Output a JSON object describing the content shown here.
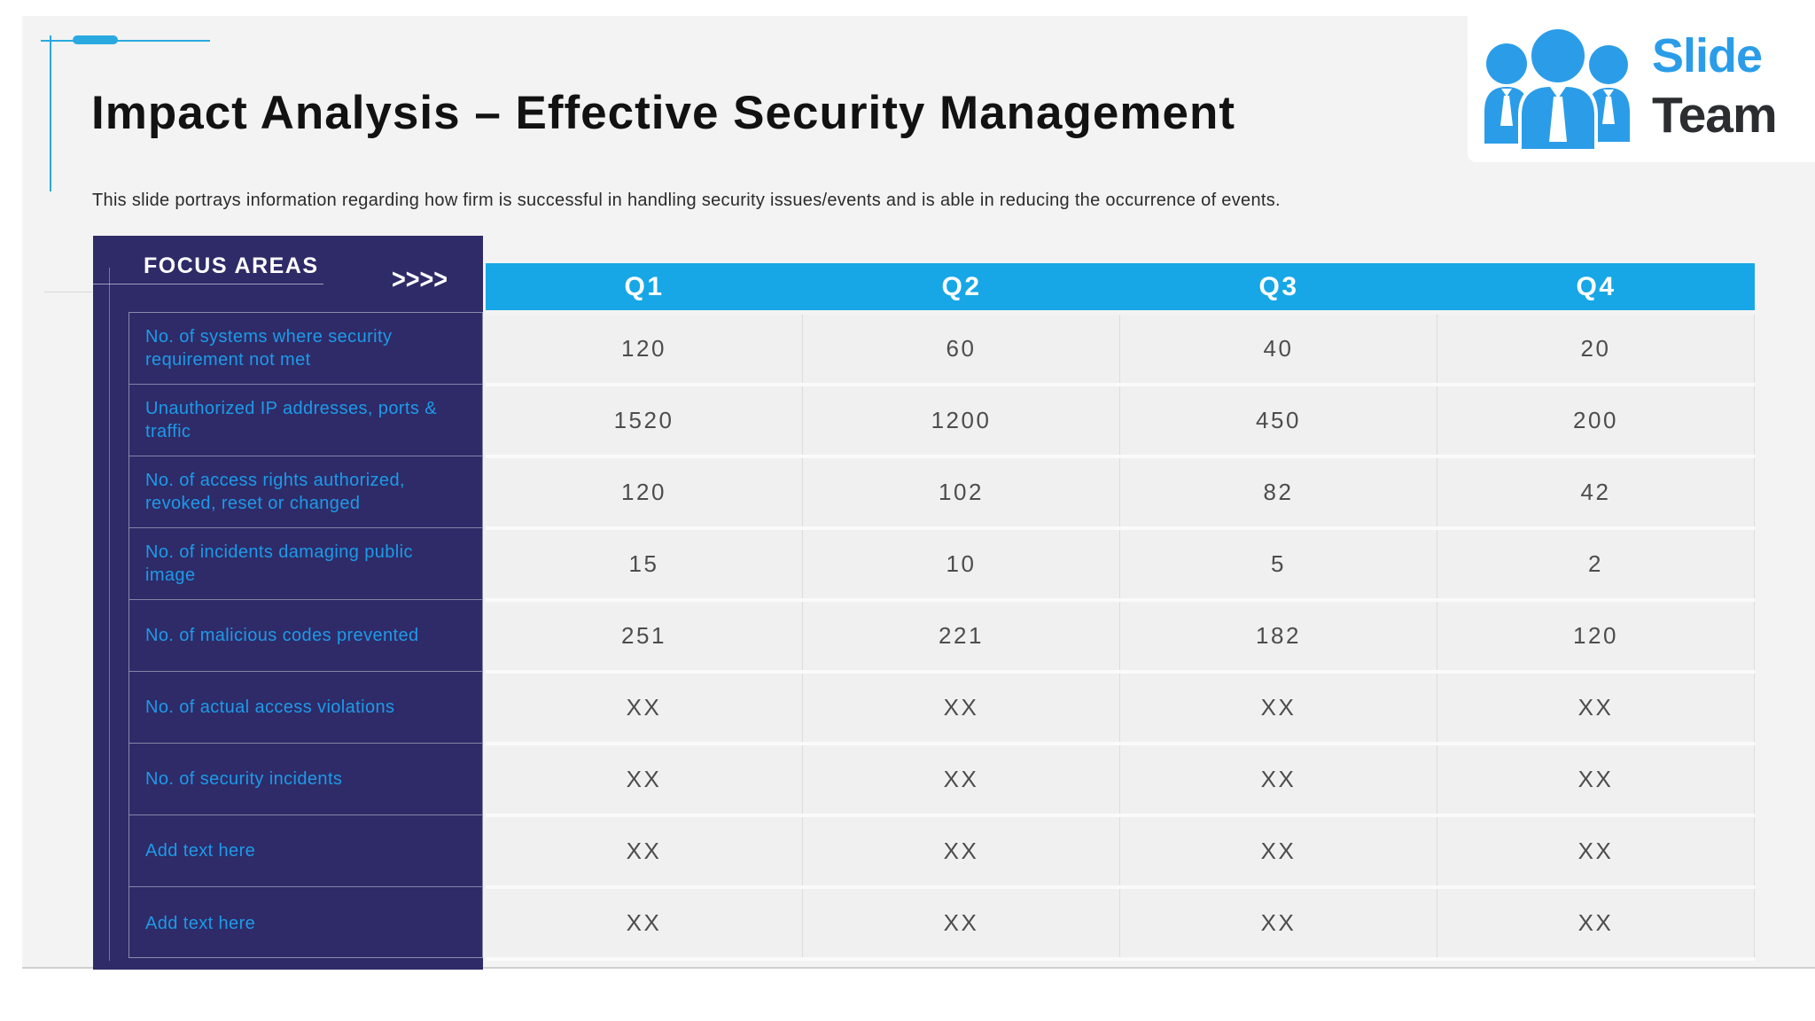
{
  "colors": {
    "panel_navy": "#2e2b68",
    "header_cyan": "#17a7e6",
    "label_blue": "#1e9ae8",
    "accent_cyan": "#29a9e0",
    "logo_blue": "#2b9de8",
    "logo_dark": "#2b2d31",
    "cell_text": "#4d4d4d"
  },
  "slide": {
    "title": "Impact Analysis – Effective Security Management",
    "subtitle": "This slide portrays information regarding how firm is successful in handling security issues/events and is able in reducing the occurrence of events."
  },
  "logo": {
    "icon": "team-people-icon",
    "word_top": "Slide",
    "word_bottom": "Team"
  },
  "focus_panel": {
    "header": "FOCUS AREAS",
    "chevrons": ">>>>"
  },
  "table": {
    "quarter_headers": [
      "Q1",
      "Q2",
      "Q3",
      "Q4"
    ],
    "rows": [
      {
        "label": "No. of systems where security requirement not met",
        "values": [
          "120",
          "60",
          "40",
          "20"
        ]
      },
      {
        "label": "Unauthorized IP addresses, ports & traffic",
        "values": [
          "1520",
          "1200",
          "450",
          "200"
        ]
      },
      {
        "label": "No. of access rights authorized, revoked, reset or changed",
        "values": [
          "120",
          "102",
          "82",
          "42"
        ]
      },
      {
        "label": "No. of incidents damaging public image",
        "values": [
          "15",
          "10",
          "5",
          "2"
        ]
      },
      {
        "label": "No. of malicious codes prevented",
        "values": [
          "251",
          "221",
          "182",
          "120"
        ]
      },
      {
        "label": "No. of actual access  violations",
        "values": [
          "XX",
          "XX",
          "XX",
          "XX"
        ]
      },
      {
        "label": "No. of security incidents",
        "values": [
          "XX",
          "XX",
          "XX",
          "XX"
        ]
      },
      {
        "label": "Add text here",
        "values": [
          "XX",
          "XX",
          "XX",
          "XX"
        ]
      },
      {
        "label": "Add text here",
        "values": [
          "XX",
          "XX",
          "XX",
          "XX"
        ]
      }
    ]
  },
  "chart_data": {
    "type": "table",
    "title": "Impact Analysis – Effective Security Management",
    "columns": [
      "Focus Areas",
      "Q1",
      "Q2",
      "Q3",
      "Q4"
    ],
    "rows": [
      [
        "No. of systems where security requirement not met",
        "120",
        "60",
        "40",
        "20"
      ],
      [
        "Unauthorized IP addresses, ports & traffic",
        "1520",
        "1200",
        "450",
        "200"
      ],
      [
        "No. of access rights authorized, revoked, reset or changed",
        "120",
        "102",
        "82",
        "42"
      ],
      [
        "No. of incidents damaging public image",
        "15",
        "10",
        "5",
        "2"
      ],
      [
        "No. of malicious codes prevented",
        "251",
        "221",
        "182",
        "120"
      ],
      [
        "No. of actual access  violations",
        "XX",
        "XX",
        "XX",
        "XX"
      ],
      [
        "No. of security incidents",
        "XX",
        "XX",
        "XX",
        "XX"
      ],
      [
        "Add text here",
        "XX",
        "XX",
        "XX",
        "XX"
      ],
      [
        "Add text here",
        "XX",
        "XX",
        "XX",
        "XX"
      ]
    ]
  }
}
